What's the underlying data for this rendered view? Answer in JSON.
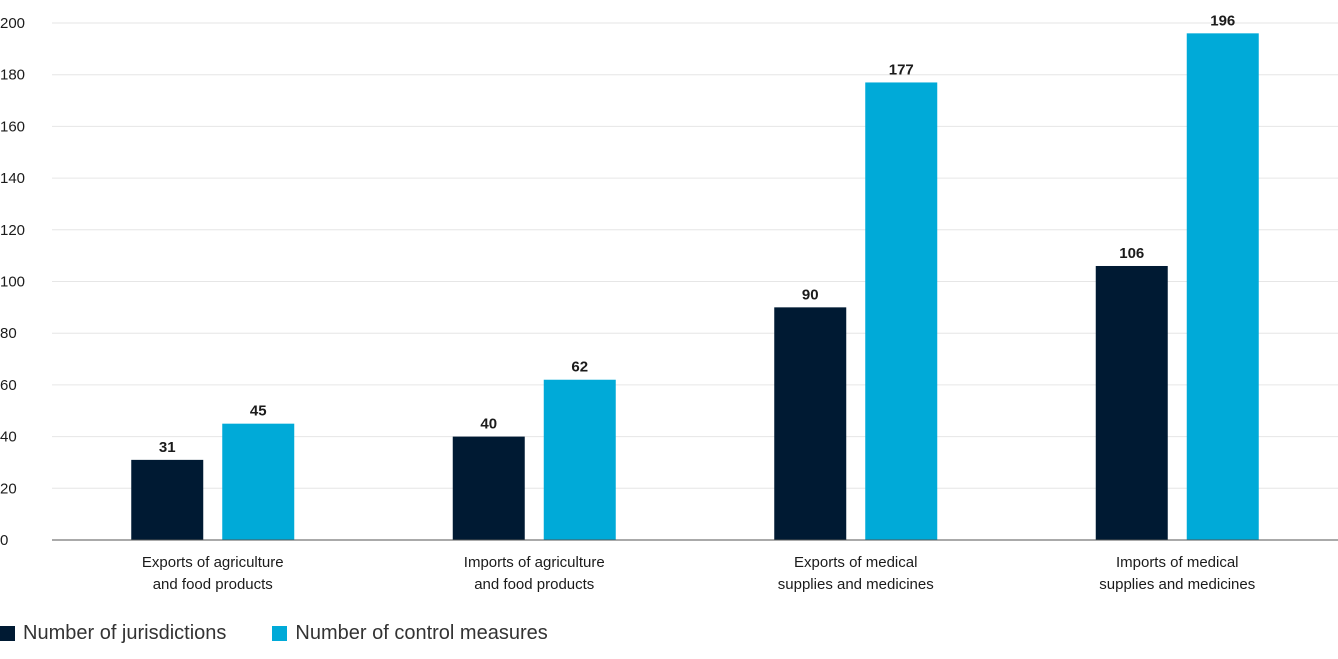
{
  "chart_data": {
    "type": "bar",
    "categories": [
      [
        "Exports of agriculture",
        "and food products"
      ],
      [
        "Imports of agriculture",
        "and food products"
      ],
      [
        "Exports of medical",
        "supplies and medicines"
      ],
      [
        "Imports of medical",
        "supplies and medicines"
      ]
    ],
    "series": [
      {
        "name": "Number of jurisdictions",
        "color": "#001a33",
        "values": [
          31,
          40,
          90,
          106
        ]
      },
      {
        "name": "Number of control measures",
        "color": "#00aad8",
        "values": [
          45,
          62,
          177,
          196
        ]
      }
    ],
    "yticks": [
      "0",
      "20",
      "40",
      "60",
      "80",
      "100",
      "120",
      "140",
      "160",
      "180",
      "200"
    ],
    "ylim": [
      0,
      200
    ],
    "grid": true,
    "legend_position": "bottom-left",
    "title": "",
    "xlabel": "",
    "ylabel": ""
  },
  "legend": {
    "series_1": "Number of jurisdictions",
    "series_2": "Number of control measures"
  }
}
